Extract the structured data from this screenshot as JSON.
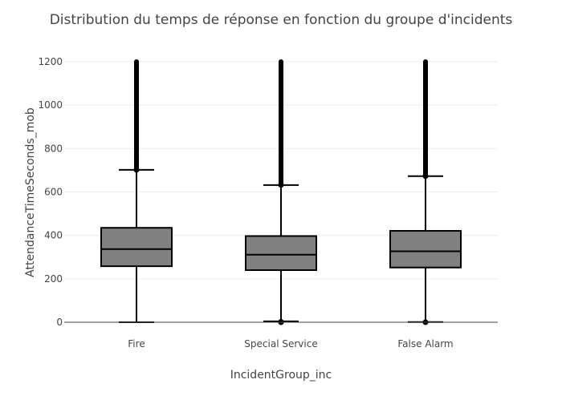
{
  "chart_data": {
    "type": "box",
    "title": "Distribution du temps de réponse en fonction du groupe d'incidents",
    "xlabel": "IncidentGroup_inc",
    "ylabel": "AttendanceTimeSeconds_mob",
    "ylim": [
      0,
      1250
    ],
    "yticks": [
      0,
      200,
      400,
      600,
      800,
      1000,
      1200
    ],
    "ytick_labels": [
      "0",
      "200",
      "400",
      "600",
      "800",
      "1000",
      "1200"
    ],
    "grid": true,
    "legend": "none",
    "categories": [
      "Fire",
      "Special Service",
      "False Alarm"
    ],
    "boxes": [
      {
        "category": "Fire",
        "whisker_low": 0,
        "q1": 258,
        "median": 337,
        "q3": 435,
        "whisker_high": 702,
        "outliers_low": [],
        "outlier_range_high": [
          702,
          1200
        ]
      },
      {
        "category": "Special Service",
        "whisker_low": 4,
        "q1": 240,
        "median": 311,
        "q3": 397,
        "whisker_high": 632,
        "outliers_low": [
          0,
          2
        ],
        "outlier_range_high": [
          632,
          1200
        ]
      },
      {
        "category": "False Alarm",
        "whisker_low": 1,
        "q1": 252,
        "median": 327,
        "q3": 421,
        "whisker_high": 673,
        "outliers_low": [
          0
        ],
        "outlier_range_high": [
          673,
          1200
        ]
      }
    ],
    "colors": {
      "box_fill": "#808080",
      "box_line": "#000000",
      "grid": "#eeeeee",
      "axis_line": "#444444",
      "text": "#444444",
      "title": "#444444"
    }
  }
}
